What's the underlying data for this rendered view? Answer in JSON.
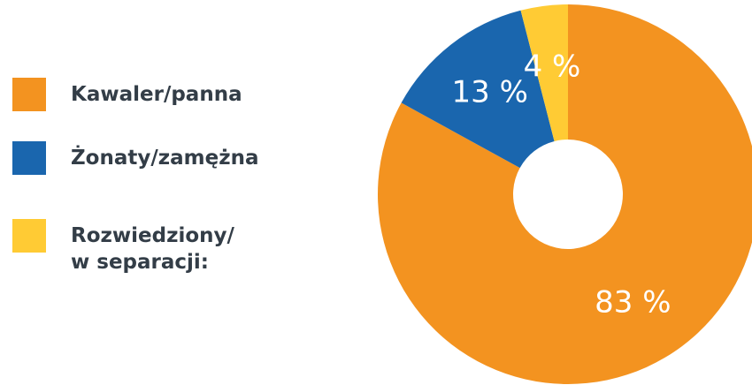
{
  "chart_data": {
    "type": "donut",
    "categories": [
      "Kawaler/panna",
      "Żonaty/zamężna",
      "Rozwiedziony/\nw separacji:"
    ],
    "values": [
      83,
      13,
      4
    ],
    "value_labels": [
      "83 %",
      "13 %",
      "4 %"
    ],
    "colors": [
      "#F39320",
      "#1A66AE",
      "#FFCB34"
    ]
  }
}
